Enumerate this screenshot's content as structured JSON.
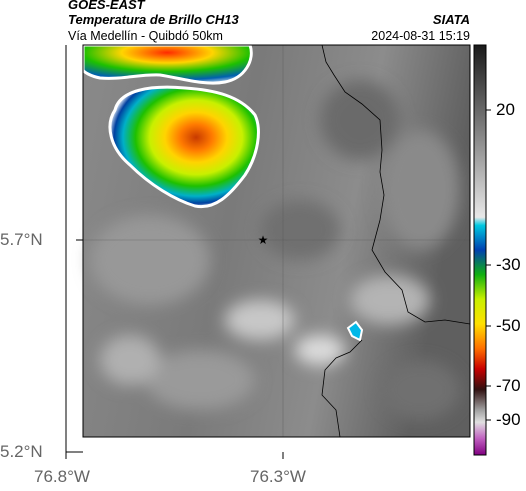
{
  "header": {
    "satellite": "GOES-EAST",
    "product": "Temperatura de Brillo CH13",
    "region": "Vía Medellín - Quibdó 50km",
    "source": "SIATA",
    "datetime": "2024-08-31 15:19"
  },
  "axes": {
    "lat_ticks": [
      "5.7°N",
      "5.2°N"
    ],
    "lon_ticks": [
      "76.8°W",
      "76.3°W"
    ]
  },
  "colorbar": {
    "ticks": [
      "20",
      "-30",
      "-50",
      "-70",
      "-90"
    ]
  },
  "colors": {
    "frame": "#000000",
    "tick_gray": "#666666"
  }
}
